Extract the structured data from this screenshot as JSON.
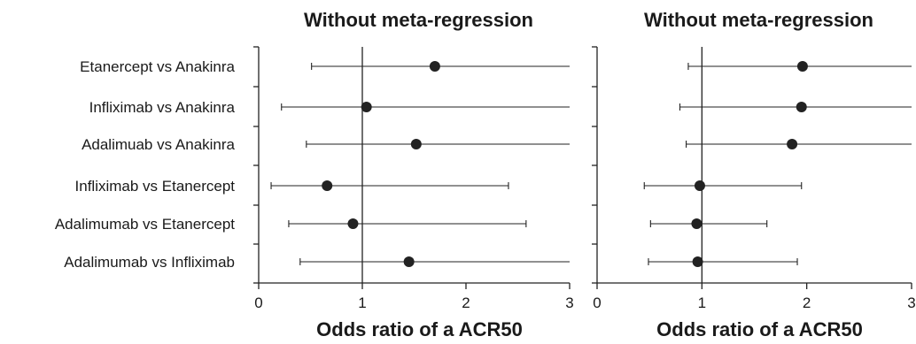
{
  "chart_data": [
    {
      "type": "forest",
      "title": "Without meta-regression",
      "xlabel": "Odds ratio of a ACR50",
      "xlim": [
        0,
        3
      ],
      "xticks": [
        0,
        1,
        2,
        3
      ],
      "reference_line": 1,
      "categories": [
        "Etanercept vs Anakinra",
        "Infliximab vs Anakinra",
        "Adalimuab vs Anakinra",
        "Infliximab vs Etanercept",
        "Adalimumab vs Etanercept",
        "Adalimumab vs Infliximab"
      ],
      "estimates": [
        1.7,
        1.04,
        1.52,
        0.66,
        0.91,
        1.45
      ],
      "lower": [
        0.51,
        0.22,
        0.46,
        0.12,
        0.29,
        0.4
      ],
      "upper": [
        3.0,
        3.0,
        3.0,
        2.41,
        2.58,
        3.0
      ]
    },
    {
      "type": "forest",
      "title": "Without meta-regression",
      "xlabel": "Odds ratio of a ACR50",
      "xlim": [
        0,
        3
      ],
      "xticks": [
        0,
        1,
        2,
        3
      ],
      "reference_line": 1,
      "categories": [
        "Etanercept vs Anakinra",
        "Infliximab vs Anakinra",
        "Adalimuab vs Anakinra",
        "Infliximab vs Etanercept",
        "Adalimumab vs Etanercept",
        "Adalimumab vs Infliximab"
      ],
      "estimates": [
        1.96,
        1.95,
        1.86,
        0.98,
        0.95,
        0.96
      ],
      "lower": [
        0.87,
        0.79,
        0.85,
        0.45,
        0.51,
        0.49
      ],
      "upper": [
        3.0,
        3.0,
        3.0,
        1.95,
        1.62,
        1.91
      ]
    }
  ],
  "colors": {
    "ink": "#222222",
    "marker": "#222222"
  }
}
